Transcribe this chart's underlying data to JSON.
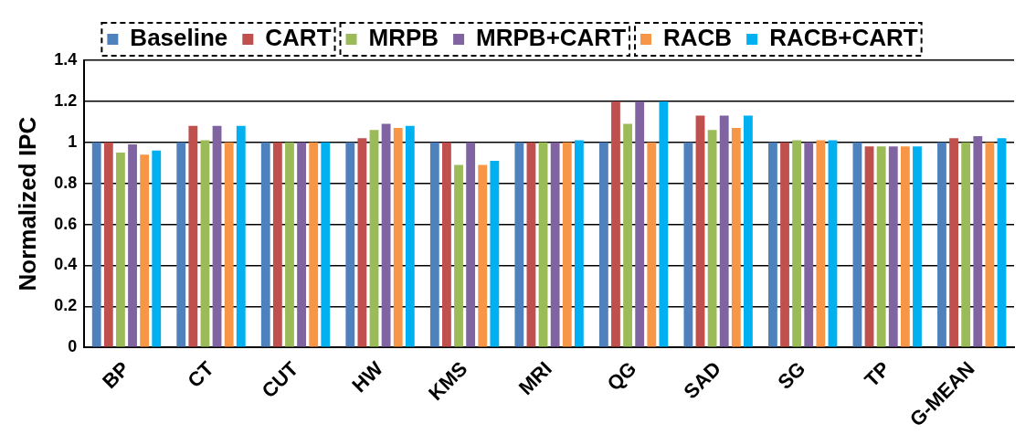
{
  "chart_data": {
    "type": "bar",
    "ylabel": "Normalized IPC",
    "categories": [
      "BP",
      "CT",
      "CUT",
      "HW",
      "KMS",
      "MRI",
      "QG",
      "SAD",
      "SG",
      "TP",
      "G-MEAN"
    ],
    "series": [
      {
        "name": "Baseline",
        "color": "#4f81bd",
        "values": [
          1,
          1,
          1,
          1,
          1,
          1,
          1,
          1,
          1,
          1,
          1
        ]
      },
      {
        "name": "CART",
        "color": "#c0504d",
        "values": [
          1,
          1.08,
          1,
          1.02,
          1,
          1,
          1.2,
          1.13,
          1,
          0.98,
          1.02
        ]
      },
      {
        "name": "MRPB",
        "color": "#9bbb59",
        "values": [
          0.95,
          1.01,
          1,
          1.06,
          0.89,
          1,
          1.09,
          1.06,
          1.01,
          0.98,
          1
        ]
      },
      {
        "name": "MRPB+CART",
        "color": "#8064a2",
        "values": [
          0.99,
          1.08,
          1,
          1.09,
          1,
          1,
          1.2,
          1.13,
          1,
          0.98,
          1.03
        ]
      },
      {
        "name": "RACB",
        "color": "#f79646",
        "values": [
          0.94,
          1,
          1,
          1.07,
          0.89,
          1,
          1,
          1.07,
          1.01,
          0.98,
          1
        ]
      },
      {
        "name": "RACB+CART",
        "color": "#00b0f0",
        "values": [
          0.96,
          1.08,
          1,
          1.08,
          0.91,
          1.01,
          1.2,
          1.13,
          1.01,
          0.98,
          1.02
        ]
      }
    ],
    "ylim": [
      0,
      1.4
    ],
    "yticks": [
      0,
      0.2,
      0.4,
      0.6,
      0.8,
      1,
      1.2,
      1.4
    ],
    "grid": "y",
    "legend": "top"
  }
}
